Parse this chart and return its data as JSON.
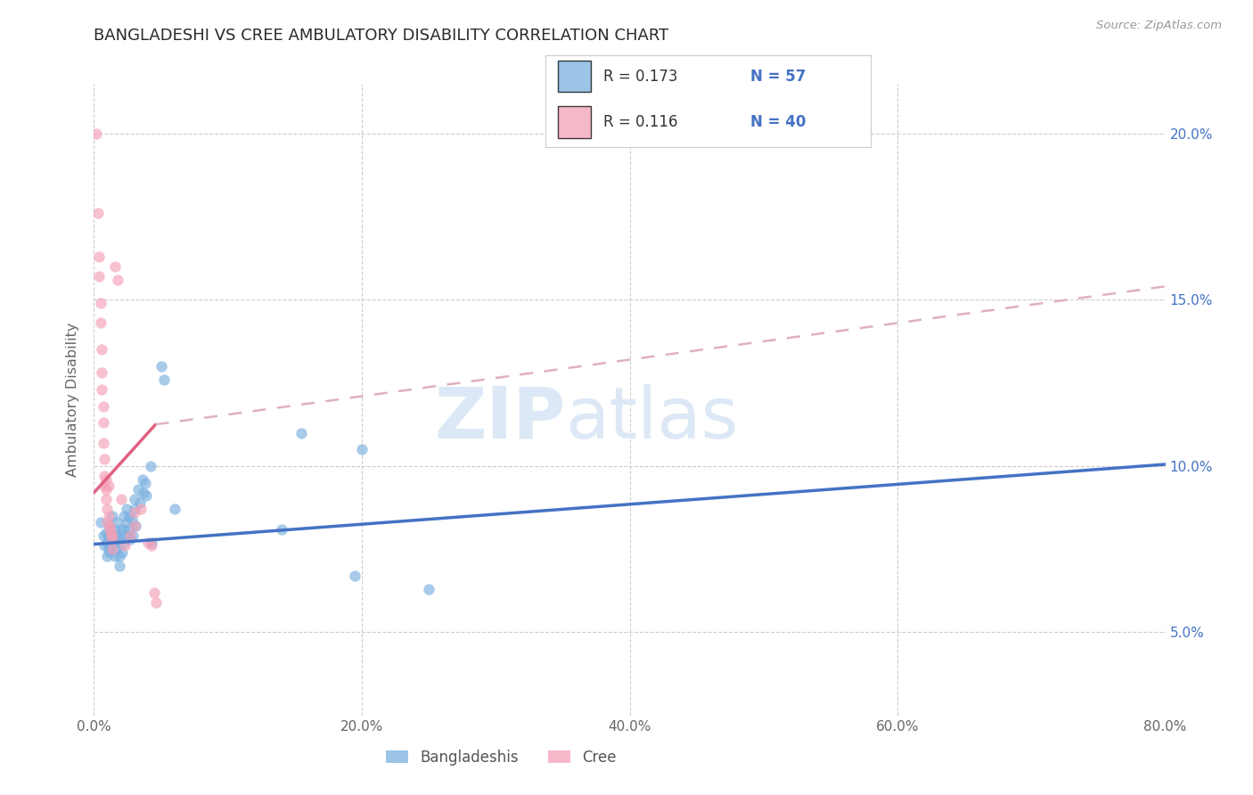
{
  "title": "BANGLADESHI VS CREE AMBULATORY DISABILITY CORRELATION CHART",
  "source": "Source: ZipAtlas.com",
  "ylabel": "Ambulatory Disability",
  "xlim": [
    0.0,
    0.8
  ],
  "ylim": [
    0.025,
    0.215
  ],
  "xticks": [
    0.0,
    0.2,
    0.4,
    0.6,
    0.8
  ],
  "xtick_labels": [
    "0.0%",
    "20.0%",
    "40.0%",
    "60.0%",
    "80.0%"
  ],
  "yticks": [
    0.05,
    0.1,
    0.15,
    0.2
  ],
  "ytick_labels": [
    "5.0%",
    "10.0%",
    "15.0%",
    "20.0%"
  ],
  "legend_r1": "R = 0.173",
  "legend_n1": "N = 57",
  "legend_r2": "R = 0.116",
  "legend_n2": "N = 40",
  "bangladeshi_dots": [
    [
      0.005,
      0.083
    ],
    [
      0.007,
      0.079
    ],
    [
      0.008,
      0.076
    ],
    [
      0.009,
      0.08
    ],
    [
      0.01,
      0.077
    ],
    [
      0.01,
      0.073
    ],
    [
      0.011,
      0.075
    ],
    [
      0.011,
      0.079
    ],
    [
      0.012,
      0.074
    ],
    [
      0.012,
      0.082
    ],
    [
      0.013,
      0.077
    ],
    [
      0.013,
      0.08
    ],
    [
      0.014,
      0.078
    ],
    [
      0.014,
      0.085
    ],
    [
      0.015,
      0.081
    ],
    [
      0.015,
      0.077
    ],
    [
      0.016,
      0.073
    ],
    [
      0.016,
      0.079
    ],
    [
      0.017,
      0.075
    ],
    [
      0.017,
      0.083
    ],
    [
      0.018,
      0.079
    ],
    [
      0.018,
      0.077
    ],
    [
      0.019,
      0.073
    ],
    [
      0.019,
      0.07
    ],
    [
      0.02,
      0.081
    ],
    [
      0.02,
      0.078
    ],
    [
      0.021,
      0.074
    ],
    [
      0.022,
      0.085
    ],
    [
      0.022,
      0.081
    ],
    [
      0.022,
      0.077
    ],
    [
      0.024,
      0.087
    ],
    [
      0.024,
      0.083
    ],
    [
      0.025,
      0.079
    ],
    [
      0.026,
      0.085
    ],
    [
      0.026,
      0.081
    ],
    [
      0.027,
      0.078
    ],
    [
      0.028,
      0.084
    ],
    [
      0.029,
      0.079
    ],
    [
      0.03,
      0.09
    ],
    [
      0.03,
      0.087
    ],
    [
      0.031,
      0.082
    ],
    [
      0.033,
      0.093
    ],
    [
      0.034,
      0.089
    ],
    [
      0.036,
      0.096
    ],
    [
      0.037,
      0.092
    ],
    [
      0.038,
      0.095
    ],
    [
      0.039,
      0.091
    ],
    [
      0.042,
      0.1
    ],
    [
      0.043,
      0.077
    ],
    [
      0.05,
      0.13
    ],
    [
      0.052,
      0.126
    ],
    [
      0.06,
      0.087
    ],
    [
      0.14,
      0.081
    ],
    [
      0.155,
      0.11
    ],
    [
      0.2,
      0.105
    ],
    [
      0.25,
      0.063
    ],
    [
      0.195,
      0.067
    ]
  ],
  "cree_dots": [
    [
      0.002,
      0.2
    ],
    [
      0.003,
      0.176
    ],
    [
      0.004,
      0.163
    ],
    [
      0.004,
      0.157
    ],
    [
      0.005,
      0.149
    ],
    [
      0.005,
      0.143
    ],
    [
      0.006,
      0.135
    ],
    [
      0.006,
      0.128
    ],
    [
      0.006,
      0.123
    ],
    [
      0.007,
      0.118
    ],
    [
      0.007,
      0.113
    ],
    [
      0.007,
      0.107
    ],
    [
      0.008,
      0.102
    ],
    [
      0.008,
      0.097
    ],
    [
      0.008,
      0.094
    ],
    [
      0.009,
      0.096
    ],
    [
      0.009,
      0.093
    ],
    [
      0.009,
      0.09
    ],
    [
      0.01,
      0.087
    ],
    [
      0.01,
      0.083
    ],
    [
      0.011,
      0.094
    ],
    [
      0.011,
      0.085
    ],
    [
      0.012,
      0.081
    ],
    [
      0.012,
      0.082
    ],
    [
      0.013,
      0.079
    ],
    [
      0.013,
      0.08
    ],
    [
      0.014,
      0.078
    ],
    [
      0.014,
      0.075
    ],
    [
      0.016,
      0.16
    ],
    [
      0.018,
      0.156
    ],
    [
      0.02,
      0.09
    ],
    [
      0.023,
      0.076
    ],
    [
      0.027,
      0.079
    ],
    [
      0.03,
      0.082
    ],
    [
      0.03,
      0.086
    ],
    [
      0.035,
      0.087
    ],
    [
      0.04,
      0.077
    ],
    [
      0.043,
      0.076
    ],
    [
      0.045,
      0.062
    ],
    [
      0.046,
      0.059
    ]
  ],
  "blue_trend": [
    0.0,
    0.0765,
    0.8,
    0.1005
  ],
  "pink_trend_solid": [
    0.0,
    0.092,
    0.046,
    0.1125
  ],
  "pink_trend_dashed": [
    0.046,
    0.1125,
    0.8,
    0.154
  ],
  "blue_color": "#4472c4",
  "pink_color": "#e06080",
  "pink_dashed_color": "#e0b0c0",
  "dot_blue": "#7ab0e0",
  "dot_pink": "#f4a0b8",
  "dot_alpha": 0.65,
  "dot_size": 80,
  "background_color": "#ffffff",
  "grid_color": "#c8c8c8",
  "title_color": "#2a2a2a",
  "axis_label_color": "#666666",
  "right_tick_color": "#4472c4",
  "n_color": "#4472c4",
  "watermark_zip": "ZIP",
  "watermark_atlas": "atlas",
  "watermark_color": "#dce8f5"
}
